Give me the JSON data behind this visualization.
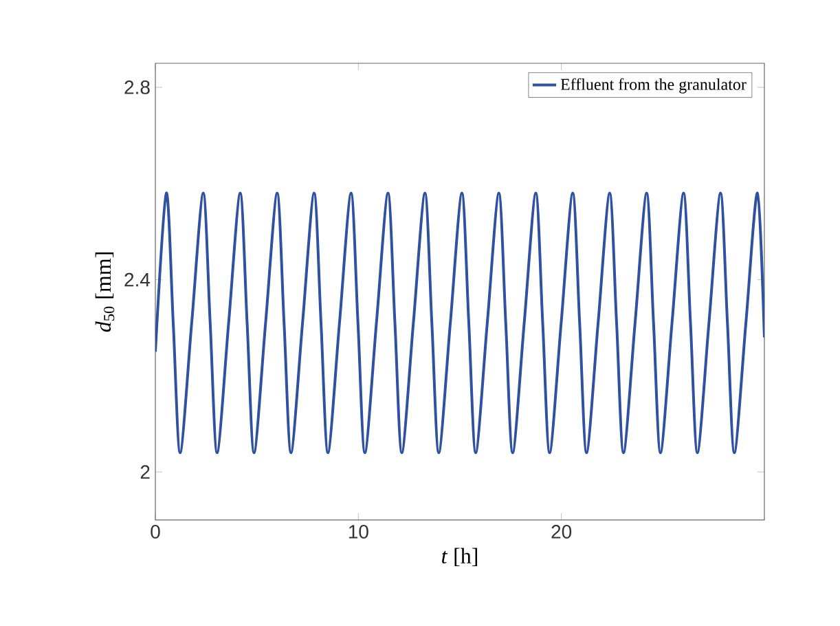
{
  "chart_data": {
    "type": "line",
    "xlabel": "*t* [h]",
    "ylabel": "*d*$_{50}$ [mm]",
    "xlim": [
      0,
      30
    ],
    "ylim": [
      1.9,
      2.85
    ],
    "xticks": [
      0,
      10,
      20
    ],
    "yticks": [
      2,
      2.4,
      2.8
    ],
    "legend": "top right",
    "grid": false,
    "line_style": "solid",
    "marker": "none",
    "series": [
      {
        "name": "Effluent from the granulator",
        "color": "#3050a0",
        "x": [
          0,
          0.54,
          0.88,
          1.22,
          1.79,
          2.36,
          2.7,
          3.04,
          3.61,
          4.18,
          4.52,
          4.86,
          5.43,
          6.0,
          6.34,
          6.68,
          7.25,
          7.82,
          8.16,
          8.5,
          9.07,
          9.64,
          9.98,
          10.32,
          10.89,
          11.46,
          11.8,
          12.14,
          12.71,
          13.28,
          13.62,
          13.96,
          14.53,
          15.1,
          15.44,
          15.78,
          16.35,
          16.92,
          17.26,
          17.6,
          18.17,
          18.74,
          19.08,
          19.42,
          19.99,
          20.56,
          20.9,
          21.24,
          21.81,
          22.38,
          22.72,
          23.06,
          23.63,
          24.2,
          24.54,
          24.88,
          25.45,
          26.02,
          26.36,
          26.7,
          27.27,
          27.84,
          28.18,
          28.52,
          29.09,
          29.66,
          30
        ],
        "values": [
          2.25,
          2.58,
          2.31,
          2.04,
          2.31,
          2.58,
          2.31,
          2.04,
          2.31,
          2.58,
          2.31,
          2.04,
          2.31,
          2.58,
          2.31,
          2.04,
          2.31,
          2.58,
          2.31,
          2.04,
          2.31,
          2.58,
          2.31,
          2.04,
          2.31,
          2.58,
          2.31,
          2.04,
          2.31,
          2.58,
          2.31,
          2.04,
          2.31,
          2.58,
          2.31,
          2.04,
          2.31,
          2.58,
          2.31,
          2.04,
          2.31,
          2.58,
          2.31,
          2.04,
          2.31,
          2.58,
          2.31,
          2.04,
          2.31,
          2.58,
          2.31,
          2.04,
          2.31,
          2.58,
          2.31,
          2.04,
          2.31,
          2.58,
          2.31,
          2.04,
          2.31,
          2.58,
          2.31,
          2.04,
          2.31,
          2.58,
          2.28
        ]
      }
    ]
  }
}
